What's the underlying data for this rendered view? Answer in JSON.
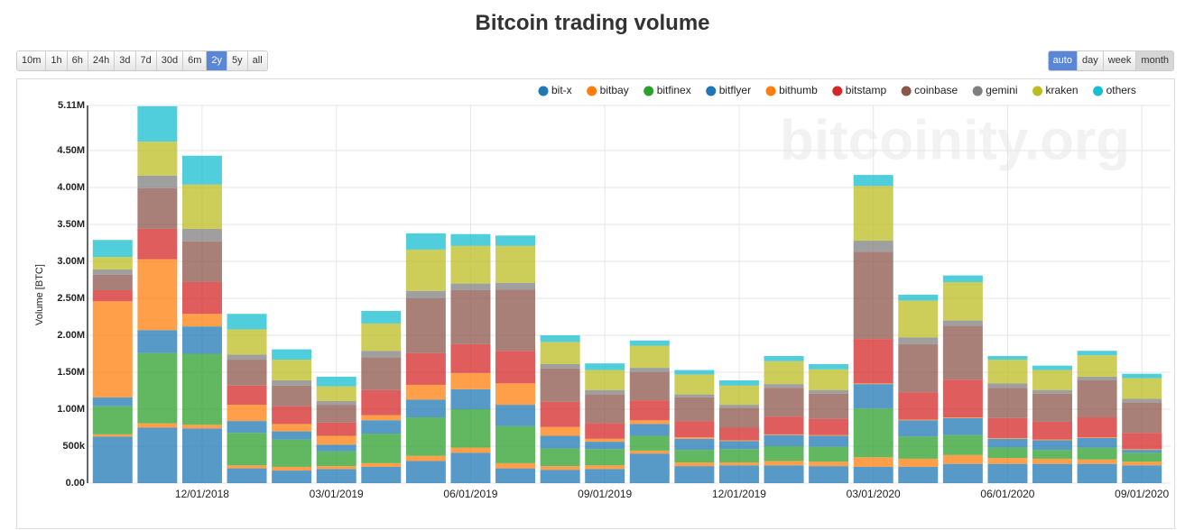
{
  "ui": {
    "range_buttons": [
      "10m",
      "1h",
      "6h",
      "24h",
      "3d",
      "7d",
      "30d",
      "6m",
      "2y",
      "5y",
      "all"
    ],
    "range_selected": 8,
    "group_buttons": [
      "auto",
      "day",
      "week",
      "month"
    ],
    "group_selected": 0,
    "group_pressed": 3
  },
  "chart_data": {
    "type": "stacked_bar",
    "title": "Bitcoin trading volume",
    "watermark": "bitcoinity.org",
    "y_label": "Volume [BTC]",
    "categories": [
      null,
      null,
      "12/01/2018",
      null,
      null,
      "03/01/2019",
      null,
      null,
      "06/01/2019",
      null,
      null,
      "09/01/2019",
      null,
      null,
      "12/01/2019",
      null,
      null,
      "03/01/2020",
      null,
      null,
      "06/01/2020",
      null,
      null,
      "09/01/2020"
    ],
    "ylim": [
      0,
      5110000
    ],
    "yticks": [
      {
        "value": 0,
        "label": "0.00"
      },
      {
        "value": 500000,
        "label": "500k"
      },
      {
        "value": 1000000,
        "label": "1.00M"
      },
      {
        "value": 1500000,
        "label": "1.50M"
      },
      {
        "value": 2000000,
        "label": "2.00M"
      },
      {
        "value": 2500000,
        "label": "2.50M"
      },
      {
        "value": 3000000,
        "label": "3.00M"
      },
      {
        "value": 3500000,
        "label": "3.50M"
      },
      {
        "value": 4000000,
        "label": "4.00M"
      },
      {
        "value": 4500000,
        "label": "4.50M"
      },
      {
        "value": 5110000,
        "label": "5.11M"
      }
    ],
    "grid": true,
    "legend": "top-right",
    "series": [
      {
        "name": "bit-x",
        "color": "#1f77b4",
        "values": [
          630000,
          750000,
          740000,
          200000,
          170000,
          190000,
          220000,
          300000,
          410000,
          200000,
          180000,
          190000,
          400000,
          230000,
          240000,
          240000,
          230000,
          220000,
          220000,
          260000,
          260000,
          260000,
          260000,
          240000
        ]
      },
      {
        "name": "bitbay",
        "color": "#ff7f0e",
        "values": [
          30000,
          60000,
          50000,
          40000,
          50000,
          40000,
          50000,
          70000,
          70000,
          70000,
          50000,
          50000,
          40000,
          50000,
          40000,
          60000,
          60000,
          130000,
          110000,
          120000,
          80000,
          70000,
          60000,
          50000
        ]
      },
      {
        "name": "bitfinex",
        "color": "#2ca02c",
        "values": [
          380000,
          950000,
          960000,
          440000,
          370000,
          200000,
          400000,
          520000,
          520000,
          500000,
          240000,
          220000,
          200000,
          170000,
          180000,
          200000,
          200000,
          660000,
          300000,
          270000,
          140000,
          120000,
          160000,
          120000
        ]
      },
      {
        "name": "bitflyer",
        "color": "#1f77b4",
        "values": [
          120000,
          310000,
          370000,
          160000,
          110000,
          90000,
          180000,
          240000,
          270000,
          290000,
          170000,
          100000,
          160000,
          150000,
          110000,
          150000,
          150000,
          330000,
          220000,
          230000,
          120000,
          130000,
          130000,
          40000
        ]
      },
      {
        "name": "bithumb",
        "color": "#ff7f0e",
        "values": [
          1300000,
          960000,
          170000,
          220000,
          100000,
          120000,
          70000,
          200000,
          220000,
          290000,
          120000,
          40000,
          50000,
          20000,
          10000,
          10000,
          10000,
          10000,
          10000,
          10000,
          10000,
          10000,
          10000,
          10000
        ]
      },
      {
        "name": "bitstamp",
        "color": "#d62728",
        "values": [
          150000,
          410000,
          430000,
          260000,
          240000,
          180000,
          340000,
          430000,
          390000,
          440000,
          340000,
          210000,
          270000,
          220000,
          170000,
          240000,
          220000,
          600000,
          370000,
          510000,
          270000,
          240000,
          270000,
          220000
        ]
      },
      {
        "name": "coinbase",
        "color": "#8c564b",
        "values": [
          210000,
          550000,
          550000,
          350000,
          280000,
          240000,
          440000,
          740000,
          730000,
          830000,
          450000,
          390000,
          380000,
          320000,
          270000,
          390000,
          340000,
          1180000,
          650000,
          730000,
          410000,
          380000,
          500000,
          410000
        ]
      },
      {
        "name": "gemini",
        "color": "#7f7f7f",
        "values": [
          70000,
          170000,
          170000,
          70000,
          70000,
          50000,
          90000,
          100000,
          90000,
          90000,
          60000,
          60000,
          60000,
          40000,
          40000,
          50000,
          50000,
          150000,
          90000,
          70000,
          60000,
          50000,
          50000,
          50000
        ]
      },
      {
        "name": "kraken",
        "color": "#bcbd22",
        "values": [
          170000,
          460000,
          600000,
          340000,
          280000,
          200000,
          370000,
          560000,
          510000,
          500000,
          300000,
          270000,
          300000,
          270000,
          260000,
          310000,
          280000,
          740000,
          500000,
          520000,
          320000,
          270000,
          290000,
          280000
        ]
      },
      {
        "name": "others",
        "color": "#17becf",
        "values": [
          230000,
          480000,
          390000,
          210000,
          140000,
          130000,
          170000,
          220000,
          160000,
          140000,
          90000,
          90000,
          70000,
          60000,
          70000,
          70000,
          70000,
          150000,
          80000,
          90000,
          50000,
          60000,
          60000,
          60000
        ]
      }
    ]
  }
}
